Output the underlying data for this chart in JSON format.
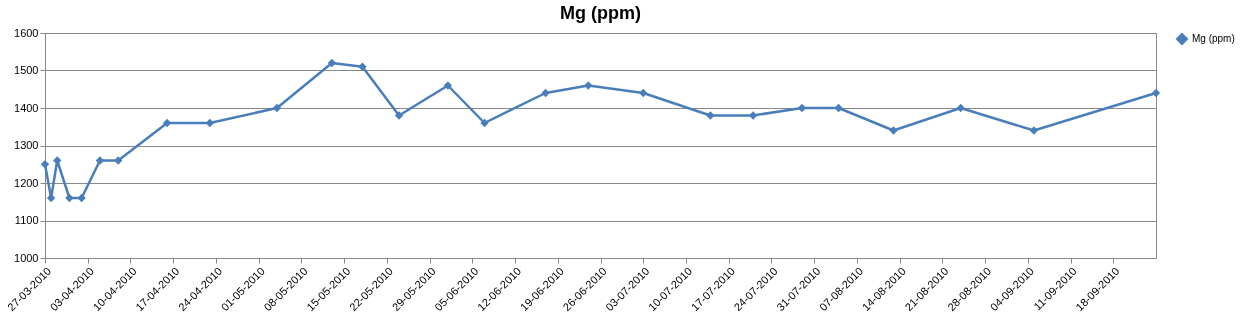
{
  "chart_data": {
    "type": "line",
    "title": "Mg (ppm)",
    "x": [
      "2010-03-27",
      "2010-03-28",
      "2010-03-29",
      "2010-03-31",
      "2010-04-02",
      "2010-04-05",
      "2010-04-08",
      "2010-04-16",
      "2010-04-23",
      "2010-05-04",
      "2010-05-13",
      "2010-05-18",
      "2010-05-24",
      "2010-06-01",
      "2010-06-07",
      "2010-06-17",
      "2010-06-24",
      "2010-07-03",
      "2010-07-14",
      "2010-07-21",
      "2010-07-29",
      "2010-08-04",
      "2010-08-13",
      "2010-08-24",
      "2010-09-05",
      "2010-09-25"
    ],
    "series": [
      {
        "name": "Mg (ppm)",
        "color": "#4a7ebb",
        "values": [
          1250,
          1160,
          1260,
          1160,
          1160,
          1260,
          1260,
          1360,
          1360,
          1400,
          1520,
          1510,
          1380,
          1460,
          1360,
          1440,
          1460,
          1440,
          1380,
          1380,
          1400,
          1400,
          1340,
          1400,
          1340,
          1440
        ]
      }
    ],
    "xlim": [
      "2010-03-27",
      "2010-09-25"
    ],
    "xticks": [
      {
        "value": "2010-03-27",
        "label": "27-03-2010"
      },
      {
        "value": "2010-04-03",
        "label": "03-04-2010"
      },
      {
        "value": "2010-04-10",
        "label": "10-04-2010"
      },
      {
        "value": "2010-04-17",
        "label": "17-04-2010"
      },
      {
        "value": "2010-04-24",
        "label": "24-04-2010"
      },
      {
        "value": "2010-05-01",
        "label": "01-05-2010"
      },
      {
        "value": "2010-05-08",
        "label": "08-05-2010"
      },
      {
        "value": "2010-05-15",
        "label": "15-05-2010"
      },
      {
        "value": "2010-05-22",
        "label": "22-05-2010"
      },
      {
        "value": "2010-05-29",
        "label": "29-05-2010"
      },
      {
        "value": "2010-06-05",
        "label": "05-06-2010"
      },
      {
        "value": "2010-06-12",
        "label": "12-06-2010"
      },
      {
        "value": "2010-06-19",
        "label": "19-06-2010"
      },
      {
        "value": "2010-06-26",
        "label": "26-06-2010"
      },
      {
        "value": "2010-07-03",
        "label": "03-07-2010"
      },
      {
        "value": "2010-07-10",
        "label": "10-07-2010"
      },
      {
        "value": "2010-07-17",
        "label": "17-07-2010"
      },
      {
        "value": "2010-07-24",
        "label": "24-07-2010"
      },
      {
        "value": "2010-07-31",
        "label": "31-07-2010"
      },
      {
        "value": "2010-08-07",
        "label": "07-08-2010"
      },
      {
        "value": "2010-08-14",
        "label": "14-08-2010"
      },
      {
        "value": "2010-08-21",
        "label": "21-08-2010"
      },
      {
        "value": "2010-08-28",
        "label": "28-08-2010"
      },
      {
        "value": "2010-09-04",
        "label": "04-09-2010"
      },
      {
        "value": "2010-09-11",
        "label": "11-09-2010"
      },
      {
        "value": "2010-09-18",
        "label": "18-09-2010"
      }
    ],
    "ylim": [
      1000,
      1600
    ],
    "yticks": [
      1000,
      1100,
      1200,
      1300,
      1400,
      1500,
      1600
    ],
    "grid": "y",
    "legend": "right",
    "marker": "diamond",
    "line_style": "solid"
  }
}
